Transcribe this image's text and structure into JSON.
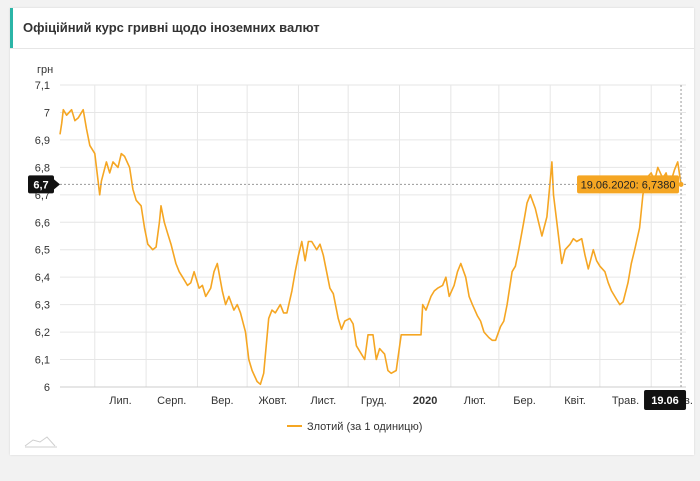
{
  "panel": {
    "title": "Офіційний курс гривні щодо іноземних валют"
  },
  "colors": {
    "series": "#f5a623",
    "grid": "#e6e6e6",
    "axis_text": "#333333",
    "badge_bg": "#111111",
    "tooltip_bg": "#f5a623",
    "header_accent": "#2bb5a7"
  },
  "chart_data": {
    "type": "line",
    "title": "",
    "xlabel": "",
    "ylabel": "грн",
    "ylim": [
      6.0,
      7.1
    ],
    "yticks": [
      "6",
      "6,1",
      "6,2",
      "6,3",
      "6,4",
      "6,5",
      "6,6",
      "6,7",
      "6,8",
      "6,9",
      "7",
      "7,1"
    ],
    "ytick_values": [
      6.0,
      6.1,
      6.2,
      6.3,
      6.4,
      6.5,
      6.6,
      6.7,
      6.8,
      6.9,
      7.0,
      7.1
    ],
    "xlim": [
      "2019-06-10",
      "2020-06-22"
    ],
    "xticks": [
      {
        "date": "2019-07-01",
        "label": "Лип.",
        "bold": false
      },
      {
        "date": "2019-08-01",
        "label": "Серп.",
        "bold": false
      },
      {
        "date": "2019-09-01",
        "label": "Вер.",
        "bold": false
      },
      {
        "date": "2019-10-01",
        "label": "Жовт.",
        "bold": false
      },
      {
        "date": "2019-11-01",
        "label": "Лист.",
        "bold": false
      },
      {
        "date": "2019-12-01",
        "label": "Груд.",
        "bold": false
      },
      {
        "date": "2020-01-01",
        "label": "2020",
        "bold": true
      },
      {
        "date": "2020-02-01",
        "label": "Лют.",
        "bold": false
      },
      {
        "date": "2020-03-01",
        "label": "Бер.",
        "bold": false
      },
      {
        "date": "2020-04-01",
        "label": "Квіт.",
        "bold": false
      },
      {
        "date": "2020-05-01",
        "label": "Трав.",
        "bold": false
      },
      {
        "date": "2020-06-01",
        "label": "Черв.",
        "bold": false
      }
    ],
    "grid": true,
    "legend": {
      "position": "bottom-center"
    },
    "series": [
      {
        "name": "Злотий (за 1 одиницю)",
        "color": "#f5a623",
        "points": [
          [
            "2019-06-10",
            6.92
          ],
          [
            "2019-06-11",
            6.96
          ],
          [
            "2019-06-12",
            7.01
          ],
          [
            "2019-06-14",
            6.99
          ],
          [
            "2019-06-17",
            7.01
          ],
          [
            "2019-06-19",
            6.97
          ],
          [
            "2019-06-21",
            6.98
          ],
          [
            "2019-06-24",
            7.01
          ],
          [
            "2019-06-26",
            6.94
          ],
          [
            "2019-06-28",
            6.88
          ],
          [
            "2019-07-01",
            6.85
          ],
          [
            "2019-07-03",
            6.75
          ],
          [
            "2019-07-04",
            6.7
          ],
          [
            "2019-07-05",
            6.75
          ],
          [
            "2019-07-08",
            6.82
          ],
          [
            "2019-07-10",
            6.78
          ],
          [
            "2019-07-12",
            6.82
          ],
          [
            "2019-07-15",
            6.8
          ],
          [
            "2019-07-17",
            6.85
          ],
          [
            "2019-07-19",
            6.84
          ],
          [
            "2019-07-22",
            6.8
          ],
          [
            "2019-07-24",
            6.72
          ],
          [
            "2019-07-26",
            6.68
          ],
          [
            "2019-07-29",
            6.66
          ],
          [
            "2019-07-31",
            6.58
          ],
          [
            "2019-08-02",
            6.52
          ],
          [
            "2019-08-05",
            6.5
          ],
          [
            "2019-08-07",
            6.51
          ],
          [
            "2019-08-09",
            6.6
          ],
          [
            "2019-08-10",
            6.66
          ],
          [
            "2019-08-12",
            6.6
          ],
          [
            "2019-08-14",
            6.56
          ],
          [
            "2019-08-16",
            6.52
          ],
          [
            "2019-08-19",
            6.45
          ],
          [
            "2019-08-21",
            6.42
          ],
          [
            "2019-08-23",
            6.4
          ],
          [
            "2019-08-26",
            6.37
          ],
          [
            "2019-08-28",
            6.38
          ],
          [
            "2019-08-30",
            6.42
          ],
          [
            "2019-09-02",
            6.36
          ],
          [
            "2019-09-04",
            6.37
          ],
          [
            "2019-09-06",
            6.33
          ],
          [
            "2019-09-09",
            6.36
          ],
          [
            "2019-09-11",
            6.42
          ],
          [
            "2019-09-13",
            6.45
          ],
          [
            "2019-09-16",
            6.35
          ],
          [
            "2019-09-18",
            6.3
          ],
          [
            "2019-09-20",
            6.33
          ],
          [
            "2019-09-23",
            6.28
          ],
          [
            "2019-09-25",
            6.3
          ],
          [
            "2019-09-27",
            6.27
          ],
          [
            "2019-09-30",
            6.2
          ],
          [
            "2019-10-02",
            6.1
          ],
          [
            "2019-10-04",
            6.06
          ],
          [
            "2019-10-07",
            6.02
          ],
          [
            "2019-10-09",
            6.01
          ],
          [
            "2019-10-11",
            6.05
          ],
          [
            "2019-10-14",
            6.25
          ],
          [
            "2019-10-16",
            6.28
          ],
          [
            "2019-10-18",
            6.27
          ],
          [
            "2019-10-21",
            6.3
          ],
          [
            "2019-10-23",
            6.27
          ],
          [
            "2019-10-25",
            6.27
          ],
          [
            "2019-10-28",
            6.35
          ],
          [
            "2019-10-30",
            6.42
          ],
          [
            "2019-11-01",
            6.48
          ],
          [
            "2019-11-03",
            6.53
          ],
          [
            "2019-11-05",
            6.46
          ],
          [
            "2019-11-07",
            6.53
          ],
          [
            "2019-11-09",
            6.53
          ],
          [
            "2019-11-12",
            6.5
          ],
          [
            "2019-11-14",
            6.52
          ],
          [
            "2019-11-16",
            6.48
          ],
          [
            "2019-11-18",
            6.42
          ],
          [
            "2019-11-20",
            6.36
          ],
          [
            "2019-11-22",
            6.34
          ],
          [
            "2019-11-25",
            6.25
          ],
          [
            "2019-11-27",
            6.21
          ],
          [
            "2019-11-29",
            6.24
          ],
          [
            "2019-12-02",
            6.25
          ],
          [
            "2019-12-04",
            6.23
          ],
          [
            "2019-12-06",
            6.15
          ],
          [
            "2019-12-09",
            6.12
          ],
          [
            "2019-12-11",
            6.1
          ],
          [
            "2019-12-13",
            6.19
          ],
          [
            "2019-12-16",
            6.19
          ],
          [
            "2019-12-18",
            6.1
          ],
          [
            "2019-12-20",
            6.14
          ],
          [
            "2019-12-23",
            6.12
          ],
          [
            "2019-12-25",
            6.06
          ],
          [
            "2019-12-27",
            6.05
          ],
          [
            "2019-12-30",
            6.06
          ],
          [
            "2020-01-02",
            6.19
          ],
          [
            "2020-01-06",
            6.19
          ],
          [
            "2020-01-10",
            6.19
          ],
          [
            "2020-01-14",
            6.19
          ],
          [
            "2020-01-15",
            6.3
          ],
          [
            "2020-01-17",
            6.28
          ],
          [
            "2020-01-20",
            6.33
          ],
          [
            "2020-01-22",
            6.35
          ],
          [
            "2020-01-24",
            6.36
          ],
          [
            "2020-01-27",
            6.37
          ],
          [
            "2020-01-29",
            6.4
          ],
          [
            "2020-01-31",
            6.33
          ],
          [
            "2020-02-03",
            6.37
          ],
          [
            "2020-02-05",
            6.42
          ],
          [
            "2020-02-07",
            6.45
          ],
          [
            "2020-02-10",
            6.4
          ],
          [
            "2020-02-12",
            6.33
          ],
          [
            "2020-02-14",
            6.3
          ],
          [
            "2020-02-17",
            6.26
          ],
          [
            "2020-02-19",
            6.24
          ],
          [
            "2020-02-21",
            6.2
          ],
          [
            "2020-02-24",
            6.18
          ],
          [
            "2020-02-26",
            6.17
          ],
          [
            "2020-02-28",
            6.17
          ],
          [
            "2020-03-02",
            6.22
          ],
          [
            "2020-03-04",
            6.24
          ],
          [
            "2020-03-06",
            6.3
          ],
          [
            "2020-03-09",
            6.42
          ],
          [
            "2020-03-11",
            6.44
          ],
          [
            "2020-03-13",
            6.5
          ],
          [
            "2020-03-16",
            6.6
          ],
          [
            "2020-03-18",
            6.67
          ],
          [
            "2020-03-20",
            6.7
          ],
          [
            "2020-03-23",
            6.65
          ],
          [
            "2020-03-25",
            6.6
          ],
          [
            "2020-03-27",
            6.55
          ],
          [
            "2020-03-30",
            6.62
          ],
          [
            "2020-04-01",
            6.75
          ],
          [
            "2020-04-02",
            6.82
          ],
          [
            "2020-04-03",
            6.7
          ],
          [
            "2020-04-06",
            6.55
          ],
          [
            "2020-04-08",
            6.45
          ],
          [
            "2020-04-10",
            6.5
          ],
          [
            "2020-04-13",
            6.52
          ],
          [
            "2020-04-15",
            6.54
          ],
          [
            "2020-04-17",
            6.53
          ],
          [
            "2020-04-20",
            6.54
          ],
          [
            "2020-04-22",
            6.48
          ],
          [
            "2020-04-24",
            6.43
          ],
          [
            "2020-04-27",
            6.5
          ],
          [
            "2020-04-29",
            6.46
          ],
          [
            "2020-05-01",
            6.44
          ],
          [
            "2020-05-04",
            6.42
          ],
          [
            "2020-05-06",
            6.38
          ],
          [
            "2020-05-08",
            6.35
          ],
          [
            "2020-05-11",
            6.32
          ],
          [
            "2020-05-13",
            6.3
          ],
          [
            "2020-05-15",
            6.31
          ],
          [
            "2020-05-18",
            6.38
          ],
          [
            "2020-05-20",
            6.45
          ],
          [
            "2020-05-22",
            6.5
          ],
          [
            "2020-05-25",
            6.58
          ],
          [
            "2020-05-27",
            6.7
          ],
          [
            "2020-05-29",
            6.76
          ],
          [
            "2020-06-01",
            6.78
          ],
          [
            "2020-06-03",
            6.75
          ],
          [
            "2020-06-05",
            6.8
          ],
          [
            "2020-06-08",
            6.76
          ],
          [
            "2020-06-10",
            6.78
          ],
          [
            "2020-06-12",
            6.73
          ],
          [
            "2020-06-15",
            6.79
          ],
          [
            "2020-06-17",
            6.82
          ],
          [
            "2020-06-19",
            6.738
          ]
        ]
      }
    ],
    "crosshair": {
      "date": "2020-06-19",
      "value": 6.738,
      "y_badge": "6,7",
      "x_badge": "19.06",
      "tooltip": "19.06.2020: 6,7380"
    }
  }
}
